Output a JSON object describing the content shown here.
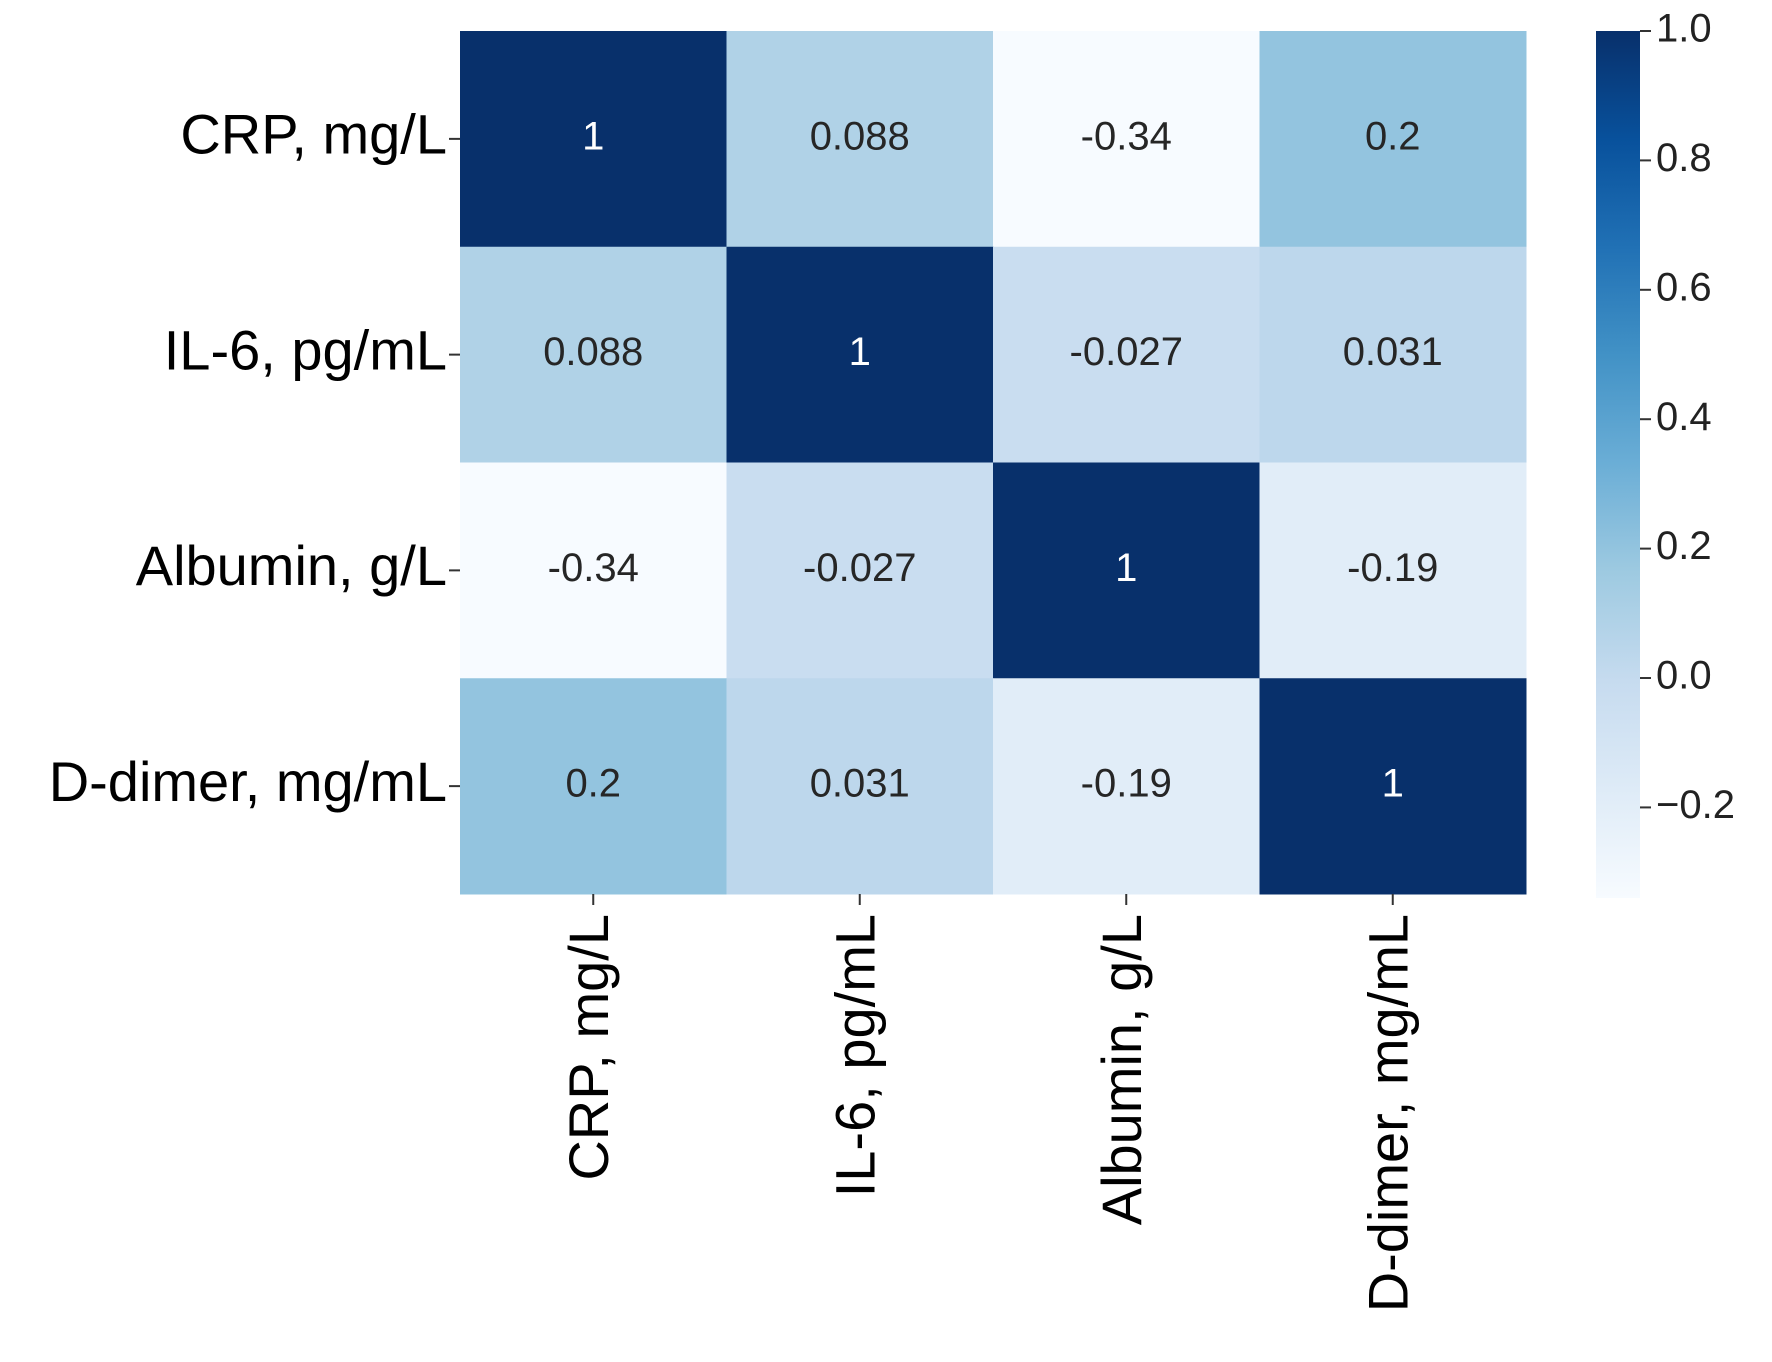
{
  "chart_data": {
    "type": "heatmap",
    "x_categories": [
      "CRP, mg/L",
      "IL-6, pg/mL",
      "Albumin,  g/L",
      "D-dimer,  mg/mL"
    ],
    "y_categories": [
      "CRP, mg/L",
      "IL-6, pg/mL",
      "Albumin,  g/L",
      "D-dimer,  mg/mL"
    ],
    "values": [
      [
        1,
        0.088,
        -0.34,
        0.2
      ],
      [
        0.088,
        1,
        -0.027,
        0.031
      ],
      [
        -0.34,
        -0.027,
        1,
        -0.19
      ],
      [
        0.2,
        0.031,
        -0.19,
        1
      ]
    ],
    "colormap": [
      "#f7fbff",
      "#deebf7",
      "#c6dbef",
      "#9ecae1",
      "#6baed6",
      "#4292c6",
      "#2171b5",
      "#08519c",
      "#08306b"
    ],
    "zlim": [
      -0.34,
      1
    ],
    "zticks": [
      {
        "value": 1,
        "label": "1.0"
      },
      {
        "value": 0.8,
        "label": "0.8"
      },
      {
        "value": 0.6,
        "label": "0.6"
      },
      {
        "value": 0.4,
        "label": "0.4"
      },
      {
        "value": 0.2,
        "label": "0.2"
      },
      {
        "value": 0,
        "label": "0.0"
      },
      {
        "value": -0.2,
        "label": "−0.2"
      }
    ]
  }
}
